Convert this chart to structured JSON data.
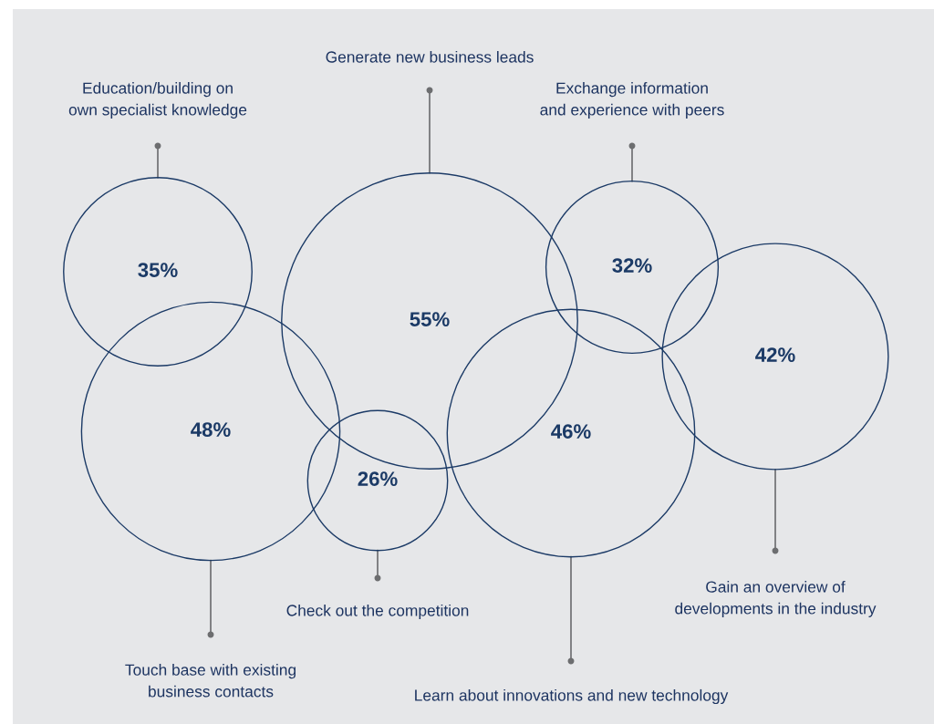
{
  "chart_data": {
    "type": "other",
    "categories": [
      "Education/building on\nown specialist knowledge",
      "Generate new business leads",
      "Exchange information\nand experience with peers",
      "Gain an overview of\ndevelopments in the industry",
      "Touch base with existing\nbusiness contacts",
      "Check out the competition",
      "Learn about innovations and new technology"
    ],
    "values": [
      35,
      55,
      32,
      42,
      48,
      26,
      46
    ],
    "colors": [
      "#1b3a66",
      "#1b3a66",
      "#1b3a66",
      "#1b3a66",
      "#1b3a66",
      "#1b3a66",
      "#1b3a66"
    ],
    "value_labels": [
      "35%",
      "55%",
      "32%",
      "42%",
      "48%",
      "26%",
      "46%"
    ]
  }
}
